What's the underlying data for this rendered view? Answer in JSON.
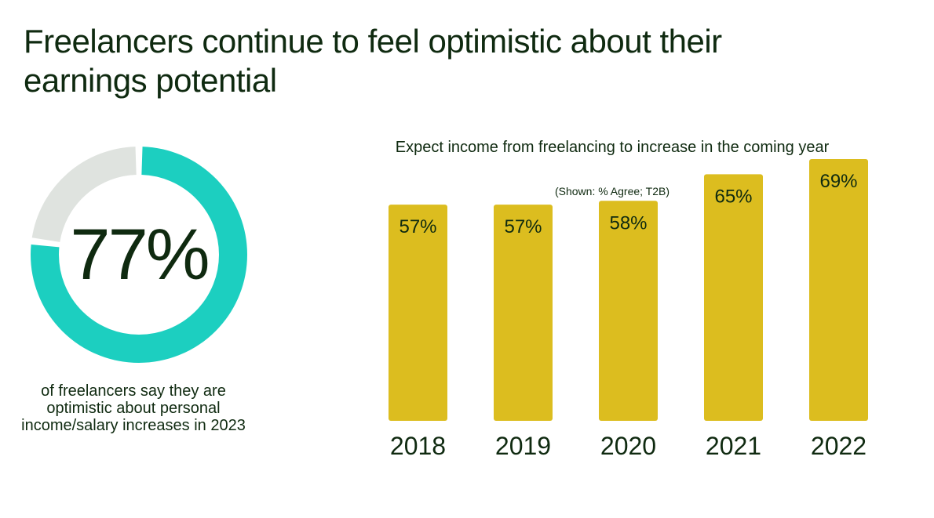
{
  "title": "Freelancers continue to feel optimistic about their earnings potential",
  "donut": {
    "value": 77,
    "label": "77%",
    "caption": "of freelancers say they are optimistic about personal income/salary increases in 2023",
    "color_fill": "#1ccfc0",
    "color_rest": "#dfe3df"
  },
  "chart_data": {
    "type": "bar",
    "title": "Expect income from freelancing to increase in the coming year",
    "subtitle": "(Shown: % Agree; T2B)",
    "categories": [
      "2018",
      "2019",
      "2020",
      "2021",
      "2022"
    ],
    "values": [
      57,
      57,
      58,
      65,
      69
    ],
    "data_labels": [
      "57%",
      "57%",
      "58%",
      "65%",
      "69%"
    ],
    "xlabel": "",
    "ylabel": "",
    "ylim": [
      0,
      100
    ],
    "bar_color": "#dcbd1f",
    "grid": false
  }
}
